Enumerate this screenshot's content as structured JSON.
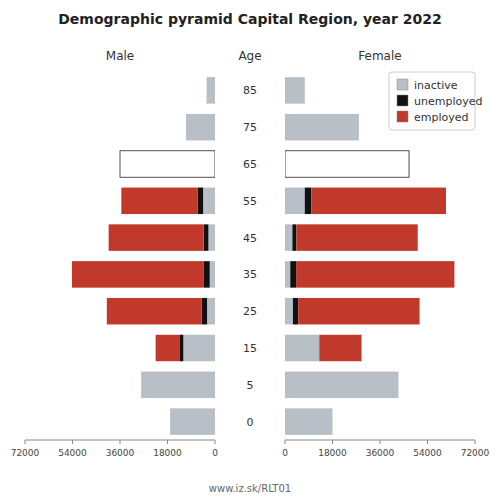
{
  "chart_data": [
    {
      "type": "bar",
      "orientation": "horizontal",
      "stacked": true,
      "title": "Demographic pyramid Capital Region, year 2022",
      "xlabel": "Male",
      "ylabel": "Age",
      "annotations": [
        "www.iz.sk/RLT01"
      ],
      "categories": [
        "85",
        "75",
        "65",
        "55",
        "45",
        "35",
        "25",
        "15",
        "5",
        "0"
      ],
      "xlim": [
        72000,
        0
      ],
      "xticks": [
        0,
        18000,
        36000,
        54000,
        72000
      ],
      "series": [
        {
          "name": "inactive",
          "color": "#b8bfc6",
          "colors": [
            "#b8bfc6",
            "#b8bfc6",
            "#ffffff",
            "#b8bfc6",
            "#b8bfc6",
            "#b8bfc6",
            "#b8bfc6",
            "#b8bfc6",
            "#b8bfc6",
            "#b8bfc6"
          ],
          "values": [
            3200,
            11000,
            36000,
            4500,
            2500,
            2000,
            3000,
            12000,
            28000,
            17000
          ]
        },
        {
          "name": "unemployed",
          "color": "#111111",
          "values": [
            0,
            0,
            0,
            2000,
            1800,
            2200,
            2000,
            1500,
            0,
            0
          ]
        },
        {
          "name": "employed",
          "color": "#c0392b",
          "values": [
            0,
            0,
            0,
            29000,
            36000,
            50000,
            36000,
            9000,
            0,
            0
          ]
        }
      ]
    },
    {
      "type": "bar",
      "orientation": "horizontal",
      "stacked": true,
      "xlabel": "Female",
      "legend": "upper right",
      "categories": [
        "85",
        "75",
        "65",
        "55",
        "45",
        "35",
        "25",
        "15",
        "5",
        "0"
      ],
      "xlim": [
        0,
        72000
      ],
      "xticks": [
        0,
        18000,
        36000,
        54000,
        72000
      ],
      "series": [
        {
          "name": "inactive",
          "color": "#b8bfc6",
          "colors": [
            "#b8bfc6",
            "#b8bfc6",
            "#ffffff",
            "#b8bfc6",
            "#b8bfc6",
            "#b8bfc6",
            "#b8bfc6",
            "#b8bfc6",
            "#b8bfc6",
            "#b8bfc6"
          ],
          "values": [
            7500,
            28000,
            47000,
            7500,
            2800,
            2000,
            3000,
            13000,
            43000,
            18000
          ]
        },
        {
          "name": "unemployed",
          "color": "#111111",
          "values": [
            0,
            0,
            0,
            2500,
            1500,
            2200,
            2000,
            0,
            0,
            0
          ]
        },
        {
          "name": "employed",
          "color": "#c0392b",
          "values": [
            0,
            0,
            0,
            51000,
            46000,
            60000,
            46000,
            16000,
            0,
            0
          ]
        }
      ]
    }
  ]
}
